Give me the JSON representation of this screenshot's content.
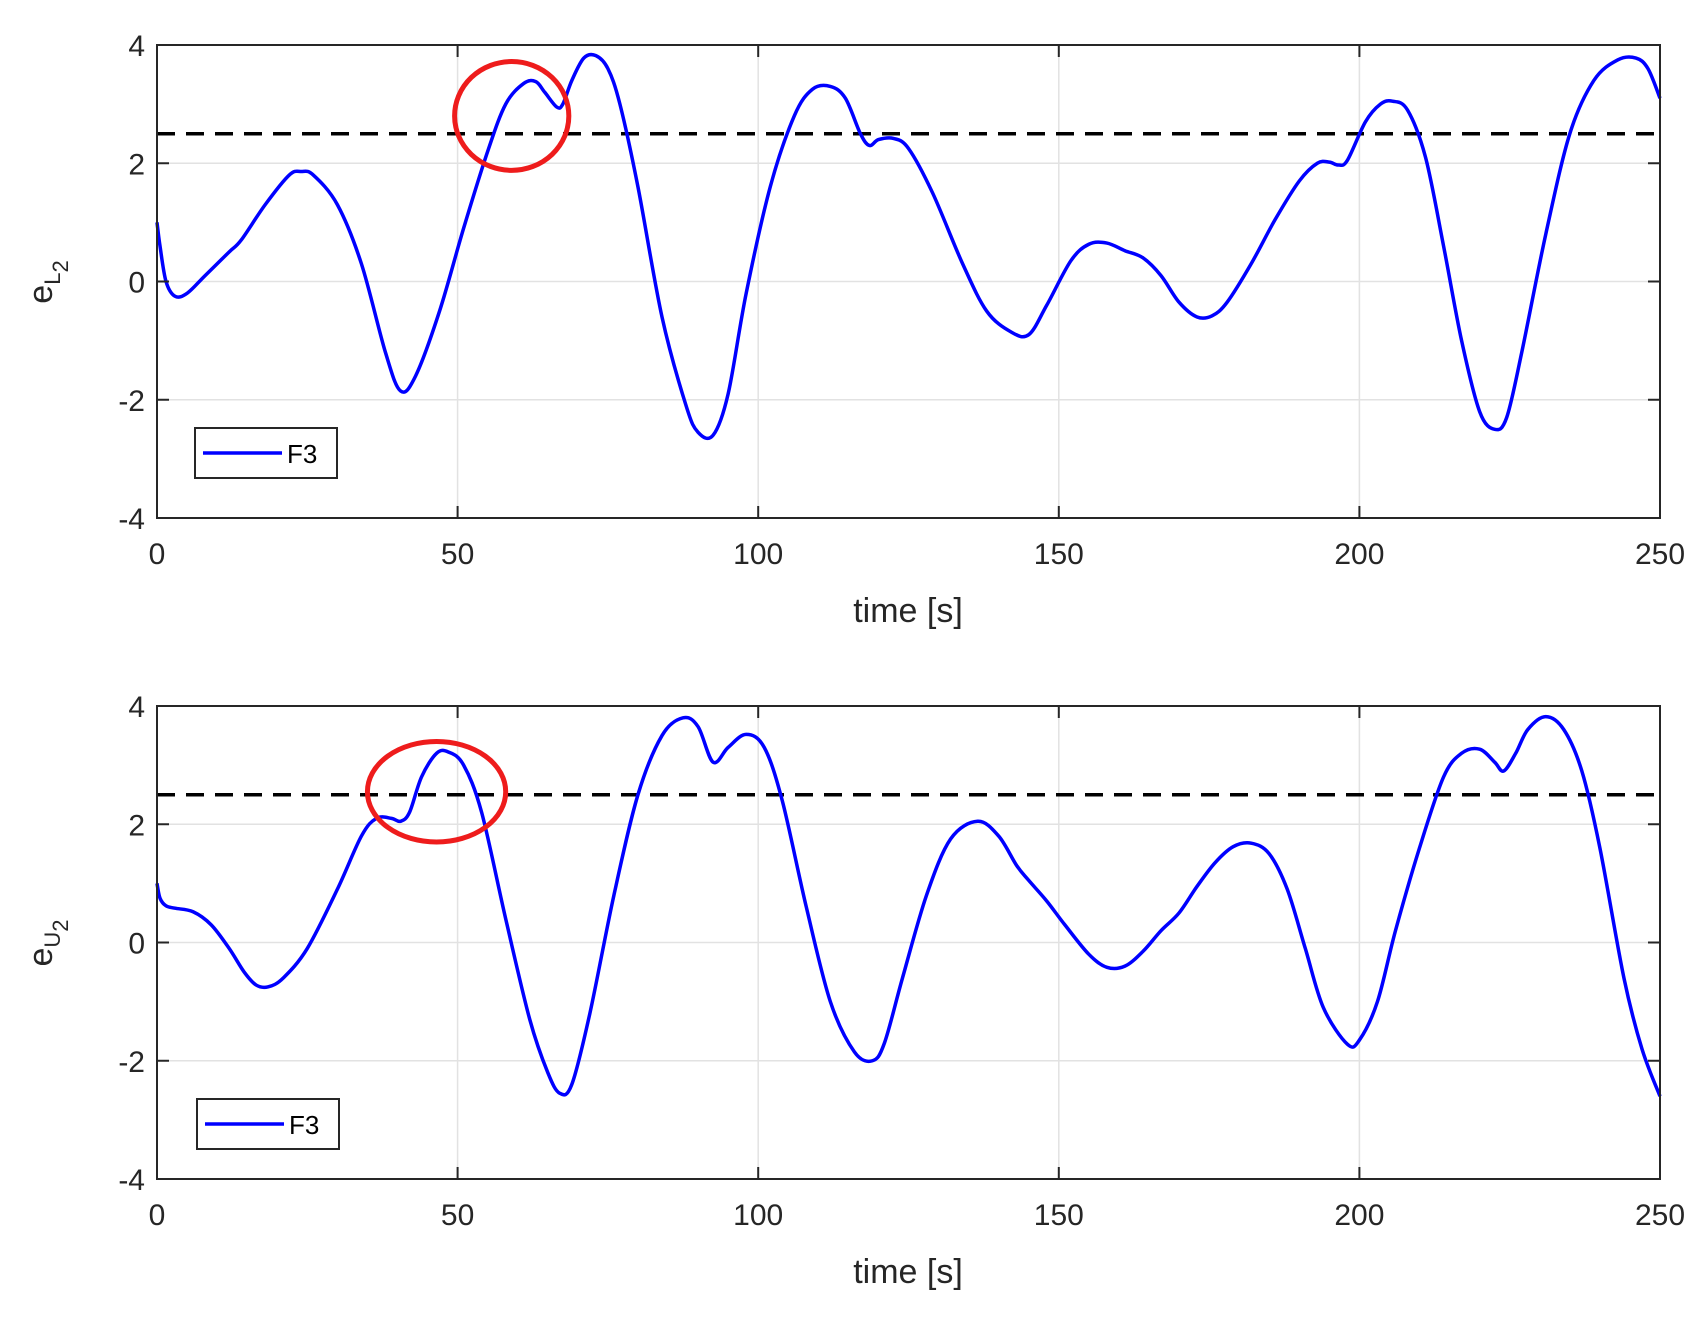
{
  "chart_data": [
    {
      "type": "line",
      "xlabel": "time [s]",
      "ylabel": {
        "base": "e",
        "sub": "L",
        "subsub": "2"
      },
      "xlim": [
        0,
        250
      ],
      "ylim": [
        -4,
        4
      ],
      "xticks": [
        "0",
        "50",
        "100",
        "150",
        "200",
        "250"
      ],
      "yticks": [
        "-4",
        "-2",
        "0",
        "2",
        "4"
      ],
      "grid": true,
      "legend_position": "bottom-left",
      "threshold": 2.5,
      "highlight": {
        "x": 59,
        "y": 2.8,
        "rx": 9.5,
        "ry": 0.92
      },
      "series": [
        {
          "name": "F3",
          "color": "#0000ff",
          "x": [
            0,
            0.5,
            1.5,
            3,
            5,
            8,
            12,
            14,
            18,
            22,
            24,
            26,
            30,
            34,
            38,
            40.5,
            43,
            47,
            51,
            55,
            58,
            61,
            63,
            64.5,
            66.5,
            67.5,
            69,
            71,
            73,
            75,
            77,
            80,
            84,
            88,
            90,
            92.5,
            95,
            98,
            102,
            106,
            109,
            112,
            114.5,
            117,
            118.5,
            120,
            122.5,
            125,
            129,
            134,
            138,
            142,
            145,
            148,
            152,
            155,
            158,
            161,
            164,
            167,
            170,
            173,
            175.5,
            178,
            182,
            186,
            190,
            193,
            195,
            196.5,
            198,
            201,
            203.5,
            205.5,
            208,
            211,
            214,
            217,
            220,
            222.5,
            224.5,
            227,
            231,
            235,
            239,
            243,
            246,
            248,
            250
          ],
          "y": [
            1.0,
            0.6,
            0.0,
            -0.25,
            -0.2,
            0.1,
            0.5,
            0.7,
            1.3,
            1.8,
            1.86,
            1.8,
            1.3,
            0.3,
            -1.2,
            -1.85,
            -1.6,
            -0.5,
            0.9,
            2.2,
            3.0,
            3.35,
            3.38,
            3.2,
            2.95,
            3.0,
            3.4,
            3.78,
            3.82,
            3.6,
            3.0,
            1.6,
            -0.6,
            -2.1,
            -2.55,
            -2.6,
            -1.9,
            -0.2,
            1.6,
            2.8,
            3.25,
            3.3,
            3.1,
            2.5,
            2.3,
            2.4,
            2.42,
            2.25,
            1.5,
            0.3,
            -0.5,
            -0.85,
            -0.9,
            -0.4,
            0.35,
            0.63,
            0.65,
            0.52,
            0.4,
            0.1,
            -0.35,
            -0.6,
            -0.58,
            -0.35,
            0.3,
            1.05,
            1.7,
            2.0,
            2.02,
            1.97,
            2.05,
            2.7,
            3.0,
            3.05,
            2.9,
            2.1,
            0.6,
            -1.0,
            -2.2,
            -2.5,
            -2.3,
            -1.2,
            0.8,
            2.5,
            3.4,
            3.75,
            3.78,
            3.6,
            3.1
          ]
        }
      ]
    },
    {
      "type": "line",
      "xlabel": "time [s]",
      "ylabel": {
        "base": "e",
        "sub": "U",
        "subsub": "2"
      },
      "xlim": [
        0,
        250
      ],
      "ylim": [
        -4,
        4
      ],
      "xticks": [
        "0",
        "50",
        "100",
        "150",
        "200",
        "250"
      ],
      "yticks": [
        "-4",
        "-2",
        "0",
        "2",
        "4"
      ],
      "grid": true,
      "legend_position": "bottom-left",
      "threshold": 2.5,
      "highlight": {
        "x": 46.5,
        "y": 2.55,
        "rx": 11.5,
        "ry": 0.85
      },
      "series": [
        {
          "name": "F3",
          "color": "#0000ff",
          "x": [
            0,
            0.5,
            1.5,
            3,
            6,
            9,
            12,
            14.5,
            16.5,
            18.5,
            21,
            25,
            30,
            34,
            36.5,
            39,
            40.5,
            42,
            44,
            46.5,
            48.5,
            51,
            54,
            58,
            62,
            65,
            67,
            69,
            72,
            76,
            80,
            84,
            87.5,
            90,
            92.5,
            95,
            98,
            101,
            104,
            108,
            112,
            116,
            119,
            121,
            124,
            128,
            132,
            136.5,
            140,
            143,
            145,
            148,
            151,
            155,
            158,
            161,
            164,
            167,
            170,
            173,
            176,
            179,
            182,
            185,
            188,
            191,
            194,
            198,
            200,
            203,
            206,
            210,
            214,
            217,
            220,
            222.5,
            224,
            226,
            228,
            231,
            234,
            237,
            240,
            244,
            247,
            250
          ],
          "y": [
            1.0,
            0.75,
            0.62,
            0.58,
            0.52,
            0.3,
            -0.1,
            -0.5,
            -0.72,
            -0.75,
            -0.6,
            -0.1,
            0.9,
            1.8,
            2.1,
            2.1,
            2.05,
            2.2,
            2.8,
            3.2,
            3.22,
            3.0,
            2.2,
            0.4,
            -1.3,
            -2.2,
            -2.55,
            -2.4,
            -1.2,
            0.8,
            2.5,
            3.5,
            3.8,
            3.65,
            3.05,
            3.3,
            3.52,
            3.3,
            2.4,
            0.6,
            -1.0,
            -1.85,
            -2.0,
            -1.7,
            -0.6,
            0.8,
            1.75,
            2.05,
            1.8,
            1.3,
            1.05,
            0.7,
            0.3,
            -0.2,
            -0.42,
            -0.4,
            -0.15,
            0.2,
            0.5,
            0.95,
            1.35,
            1.62,
            1.68,
            1.5,
            0.9,
            -0.1,
            -1.1,
            -1.72,
            -1.65,
            -1.0,
            0.2,
            1.6,
            2.8,
            3.2,
            3.27,
            3.05,
            2.9,
            3.2,
            3.6,
            3.82,
            3.6,
            2.9,
            1.6,
            -0.6,
            -1.8,
            -2.6
          ]
        }
      ]
    }
  ]
}
